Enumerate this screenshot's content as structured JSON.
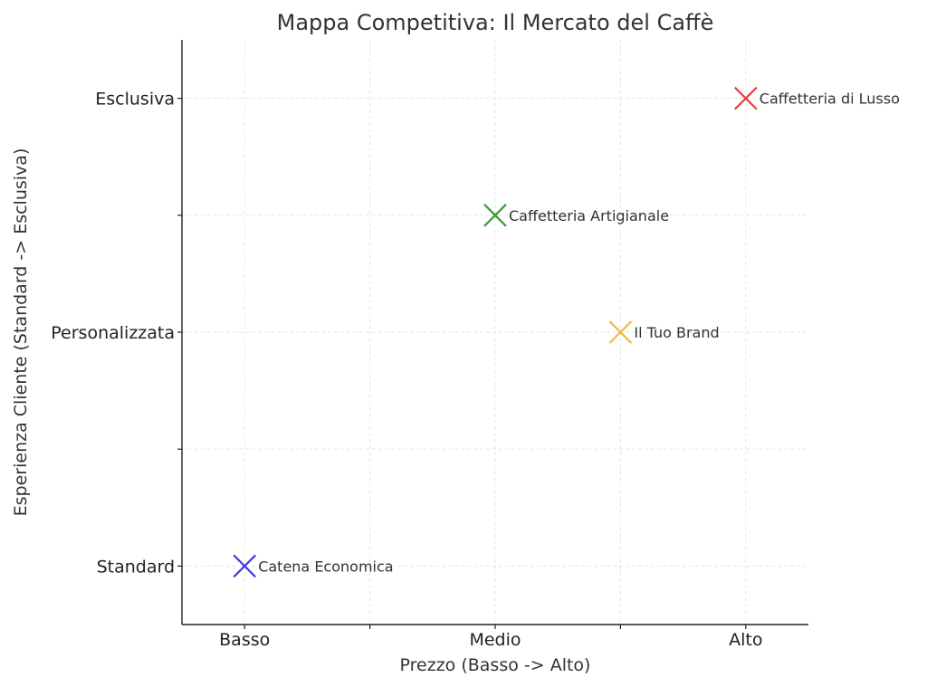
{
  "chart_data": {
    "type": "scatter",
    "title": "Mappa Competitiva: Il Mercato del Caffè",
    "xlabel": "Prezzo (Basso -> Alto)",
    "ylabel": "Esperienza Cliente (Standard -> Esclusiva)",
    "xlim": [
      0.75,
      3.25
    ],
    "ylim": [
      0.75,
      3.25
    ],
    "x_ticks": [
      {
        "value": 1,
        "label": "Basso"
      },
      {
        "value": 1.5,
        "label": ""
      },
      {
        "value": 2,
        "label": "Medio"
      },
      {
        "value": 2.5,
        "label": ""
      },
      {
        "value": 3,
        "label": "Alto"
      }
    ],
    "y_ticks": [
      {
        "value": 1,
        "label": "Standard"
      },
      {
        "value": 1.5,
        "label": ""
      },
      {
        "value": 2,
        "label": "Personalizzata"
      },
      {
        "value": 2.5,
        "label": ""
      },
      {
        "value": 3,
        "label": "Esclusiva"
      }
    ],
    "grid": true,
    "marker": "x",
    "points": [
      {
        "label": "Catena Economica",
        "x": 1,
        "y": 1,
        "color": "#3b3bdc"
      },
      {
        "label": "Caffetteria Artigianale",
        "x": 2,
        "y": 2.5,
        "color": "#3a9a3a"
      },
      {
        "label": "Il Tuo Brand",
        "x": 2.5,
        "y": 2,
        "color": "#f5b73a"
      },
      {
        "label": "Caffetteria di Lusso",
        "x": 3,
        "y": 3,
        "color": "#e83838"
      }
    ]
  }
}
